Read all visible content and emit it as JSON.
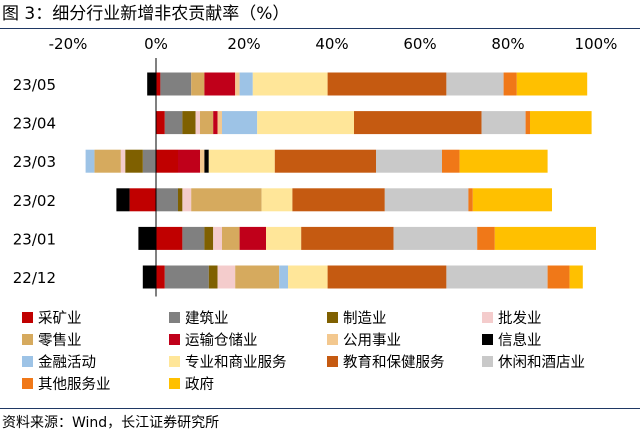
{
  "title": "图  3：细分行业新增非农贡献率（%）",
  "source": "资料来源：Wind，长江证券研究所",
  "chart_data": {
    "type": "bar",
    "orientation": "horizontal",
    "stacked": true,
    "xlim": [
      -0.2,
      1.0
    ],
    "x_ticks": [
      -0.2,
      0,
      0.2,
      0.4,
      0.6,
      0.8,
      1.0
    ],
    "x_tick_labels": [
      "-20%",
      "0%",
      "20%",
      "40%",
      "60%",
      "80%",
      "100%"
    ],
    "x_axis_position": "top",
    "grid": false,
    "legend_position": "bottom",
    "categories": [
      "23/05",
      "23/04",
      "23/03",
      "23/02",
      "23/01",
      "22/12"
    ],
    "series": [
      {
        "name": "采矿业",
        "color": "#c00000",
        "values": [
          0.01,
          0.02,
          0.05,
          -0.06,
          0.06,
          0.02
        ]
      },
      {
        "name": "建筑业",
        "color": "#808080",
        "values": [
          0.07,
          0.04,
          -0.03,
          0.05,
          0.05,
          0.1
        ]
      },
      {
        "name": "制造业",
        "color": "#7f6000",
        "values": [
          0.0,
          0.03,
          -0.04,
          0.01,
          0.02,
          0.02
        ]
      },
      {
        "name": "批发业",
        "color": "#f4cccc",
        "values": [
          0.0,
          0.01,
          -0.01,
          0.02,
          0.02,
          0.04
        ]
      },
      {
        "name": "零售业",
        "color": "#d6aa5e",
        "values": [
          0.03,
          0.03,
          -0.06,
          0.16,
          0.04,
          0.1
        ]
      },
      {
        "name": "运输仓储业",
        "color": "#c0001a",
        "values": [
          0.07,
          0.01,
          0.05,
          0.0,
          0.06,
          0.0
        ]
      },
      {
        "name": "公用事业",
        "color": "#f3c88f",
        "values": [
          0.01,
          0.01,
          0.01,
          0.0,
          0.0,
          0.0
        ]
      },
      {
        "name": "信息业",
        "color": "#000000",
        "values": [
          -0.02,
          0.0,
          0.01,
          -0.03,
          -0.04,
          -0.03
        ]
      },
      {
        "name": "金融活动",
        "color": "#9dc3e6",
        "values": [
          0.03,
          0.08,
          -0.02,
          0.0,
          0.0,
          0.02
        ]
      },
      {
        "name": "专业和商业服务",
        "color": "#ffe699",
        "values": [
          0.17,
          0.22,
          0.15,
          0.07,
          0.08,
          0.09
        ]
      },
      {
        "name": "教育和保健服务",
        "color": "#c55a11",
        "values": [
          0.27,
          0.29,
          0.23,
          0.21,
          0.21,
          0.27
        ]
      },
      {
        "name": "休闲和酒店业",
        "color": "#c9c9c9",
        "values": [
          0.13,
          0.1,
          0.15,
          0.19,
          0.19,
          0.23
        ]
      },
      {
        "name": "其他服务业",
        "color": "#f07818",
        "values": [
          0.03,
          0.01,
          0.04,
          0.01,
          0.04,
          0.05
        ]
      },
      {
        "name": "政府",
        "color": "#ffc000",
        "values": [
          0.16,
          0.14,
          0.2,
          0.18,
          0.23,
          0.03
        ]
      }
    ]
  }
}
